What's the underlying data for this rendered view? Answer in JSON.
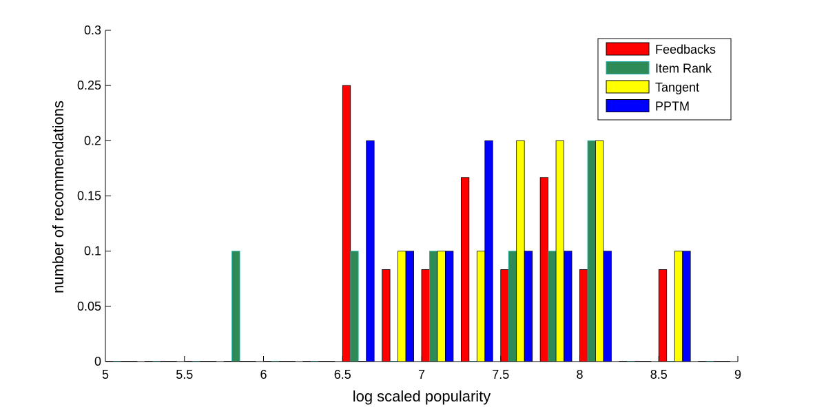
{
  "chart_data": {
    "type": "bar",
    "title": "",
    "xlabel": "log scaled popularity",
    "ylabel": "number of recommendations",
    "xlim": [
      5,
      9
    ],
    "ylim": [
      0,
      0.3
    ],
    "xticks": [
      "5",
      "5.5",
      "6",
      "6.5",
      "7",
      "7.5",
      "8",
      "8.5",
      "9"
    ],
    "yticks": [
      "0",
      "0.05",
      "0.1",
      "0.15",
      "0.2",
      "0.25",
      "0.3"
    ],
    "grid": false,
    "legend_position": "top-right",
    "bin_centers": [
      5.1,
      5.35,
      5.6,
      5.85,
      6.1,
      6.35,
      6.6,
      6.85,
      7.1,
      7.35,
      7.6,
      7.85,
      8.1,
      8.35,
      8.6,
      8.85
    ],
    "series": [
      {
        "name": "Feedbacks",
        "color": "#ff0000",
        "values": [
          0,
          0,
          0,
          0,
          0,
          0,
          0.25,
          0.0833,
          0.0833,
          0.1667,
          0.0833,
          0.1667,
          0.0833,
          0,
          0.0833,
          0
        ]
      },
      {
        "name": "Item Rank",
        "color": "#2e8b57",
        "values": [
          0,
          0,
          0,
          0.1,
          0,
          0,
          0.1,
          0,
          0.1,
          0,
          0.1,
          0.1,
          0.2,
          0,
          0,
          0
        ]
      },
      {
        "name": "Tangent",
        "color": "#ffff00",
        "values": [
          0,
          0,
          0,
          0,
          0,
          0,
          0,
          0.1,
          0.1,
          0.1,
          0.2,
          0.2,
          0.2,
          0,
          0.1,
          0
        ]
      },
      {
        "name": "PPTM",
        "color": "#0000ff",
        "values": [
          0,
          0,
          0,
          0,
          0,
          0,
          0.2,
          0.1,
          0.1,
          0.2,
          0.1,
          0.1,
          0.1,
          0,
          0.1,
          0
        ]
      }
    ]
  }
}
